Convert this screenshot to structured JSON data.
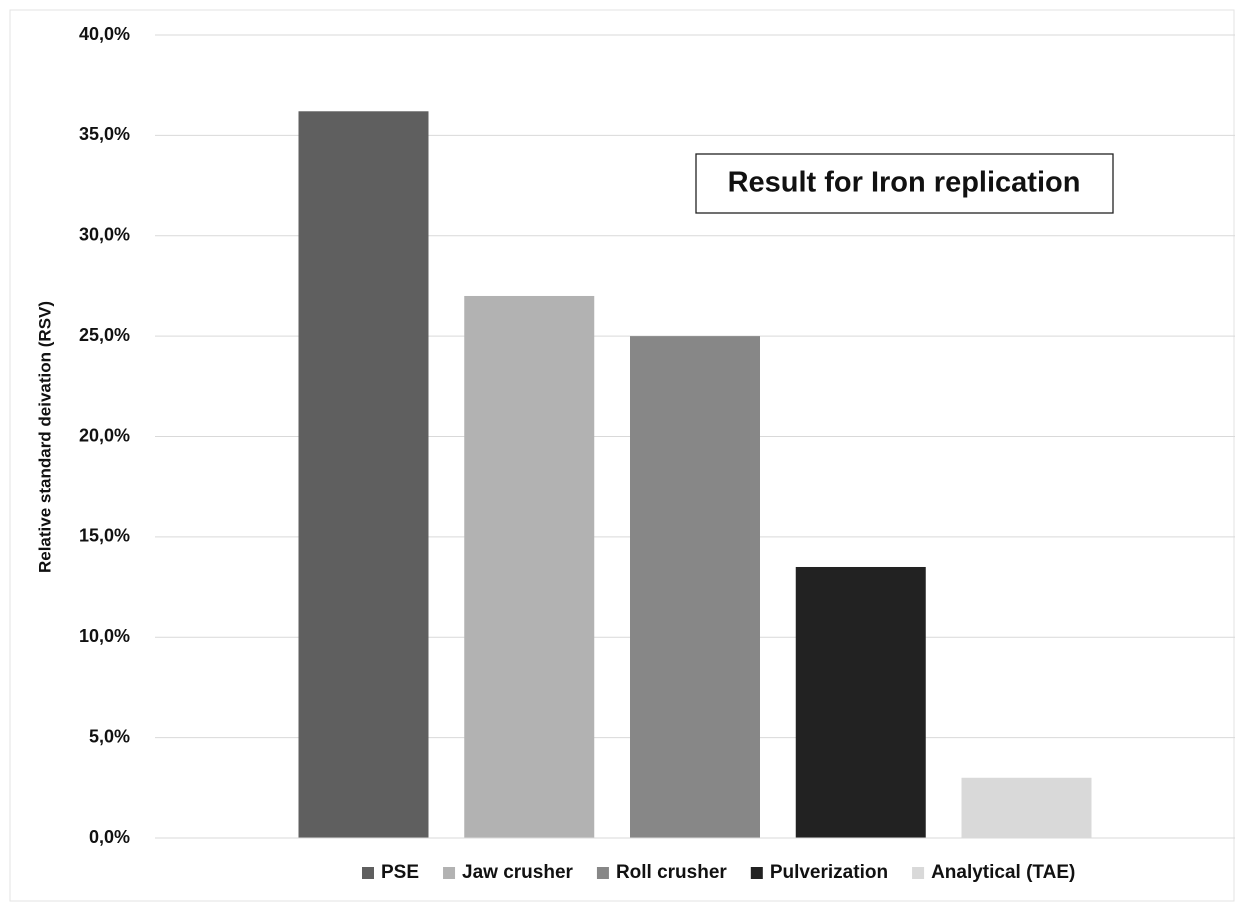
{
  "chart_data": {
    "type": "bar",
    "annotation": "Result for Iron replication",
    "y_label": "Relative standard deivation (RSV)",
    "ylim": [
      0,
      40
    ],
    "yticks": [
      {
        "value": 0,
        "label": "0,0%"
      },
      {
        "value": 5,
        "label": "5,0%"
      },
      {
        "value": 10,
        "label": "10,0%"
      },
      {
        "value": 15,
        "label": "15,0%"
      },
      {
        "value": 20,
        "label": "20,0%"
      },
      {
        "value": 25,
        "label": "25,0%"
      },
      {
        "value": 30,
        "label": "30,0%"
      },
      {
        "value": 35,
        "label": "35,0%"
      },
      {
        "value": 40,
        "label": "40,0%"
      }
    ],
    "grid": true,
    "legend": "bottom",
    "series": [
      {
        "name": "PSE",
        "color": "#5f5f5f",
        "values": [
          36.2
        ]
      },
      {
        "name": "Jaw crusher",
        "color": "#b2b2b2",
        "values": [
          27.0
        ]
      },
      {
        "name": "Roll crusher",
        "color": "#878787",
        "values": [
          25.0
        ]
      },
      {
        "name": "Pulverization",
        "color": "#222222",
        "values": [
          13.5
        ]
      },
      {
        "name": "Analytical (TAE)",
        "color": "#d9d9d9",
        "values": [
          3.0
        ]
      }
    ]
  }
}
